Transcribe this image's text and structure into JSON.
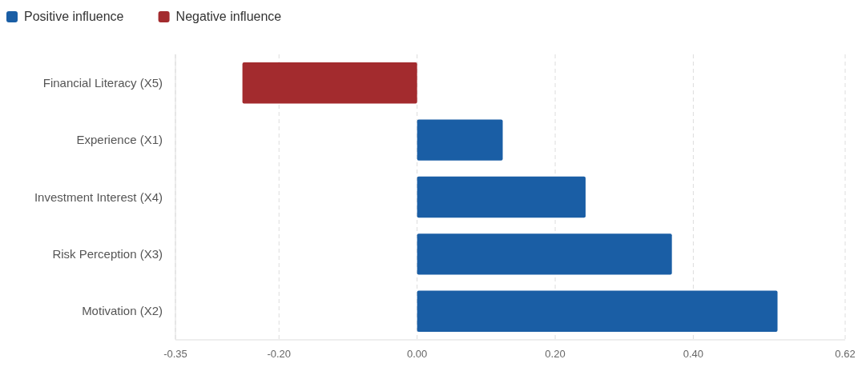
{
  "chart_data": {
    "type": "bar",
    "orientation": "horizontal",
    "categories": [
      "Financial Literacy (X5)",
      "Experience (X1)",
      "Investment Interest (X4)",
      "Risk Perception (X3)",
      "Motivation (X2)"
    ],
    "series": [
      {
        "name": "Positive influence",
        "color": "#1a5ea5",
        "values": [
          null,
          0.124,
          0.244,
          0.369,
          0.522
        ]
      },
      {
        "name": "Negative influence",
        "color": "#a32b2e",
        "values": [
          -0.253,
          null,
          null,
          null,
          null
        ]
      }
    ],
    "xlim": [
      -0.35,
      0.62
    ],
    "xticks": [
      {
        "value": -0.35,
        "label": "-0.35"
      },
      {
        "value": -0.2,
        "label": "-0.20"
      },
      {
        "value": 0,
        "label": "0.00"
      },
      {
        "value": 0.2,
        "label": "0.20"
      },
      {
        "value": 0.4,
        "label": "0.40"
      },
      {
        "value": 0.62,
        "label": "0.62"
      }
    ],
    "grid": "x",
    "legend": "top left"
  }
}
